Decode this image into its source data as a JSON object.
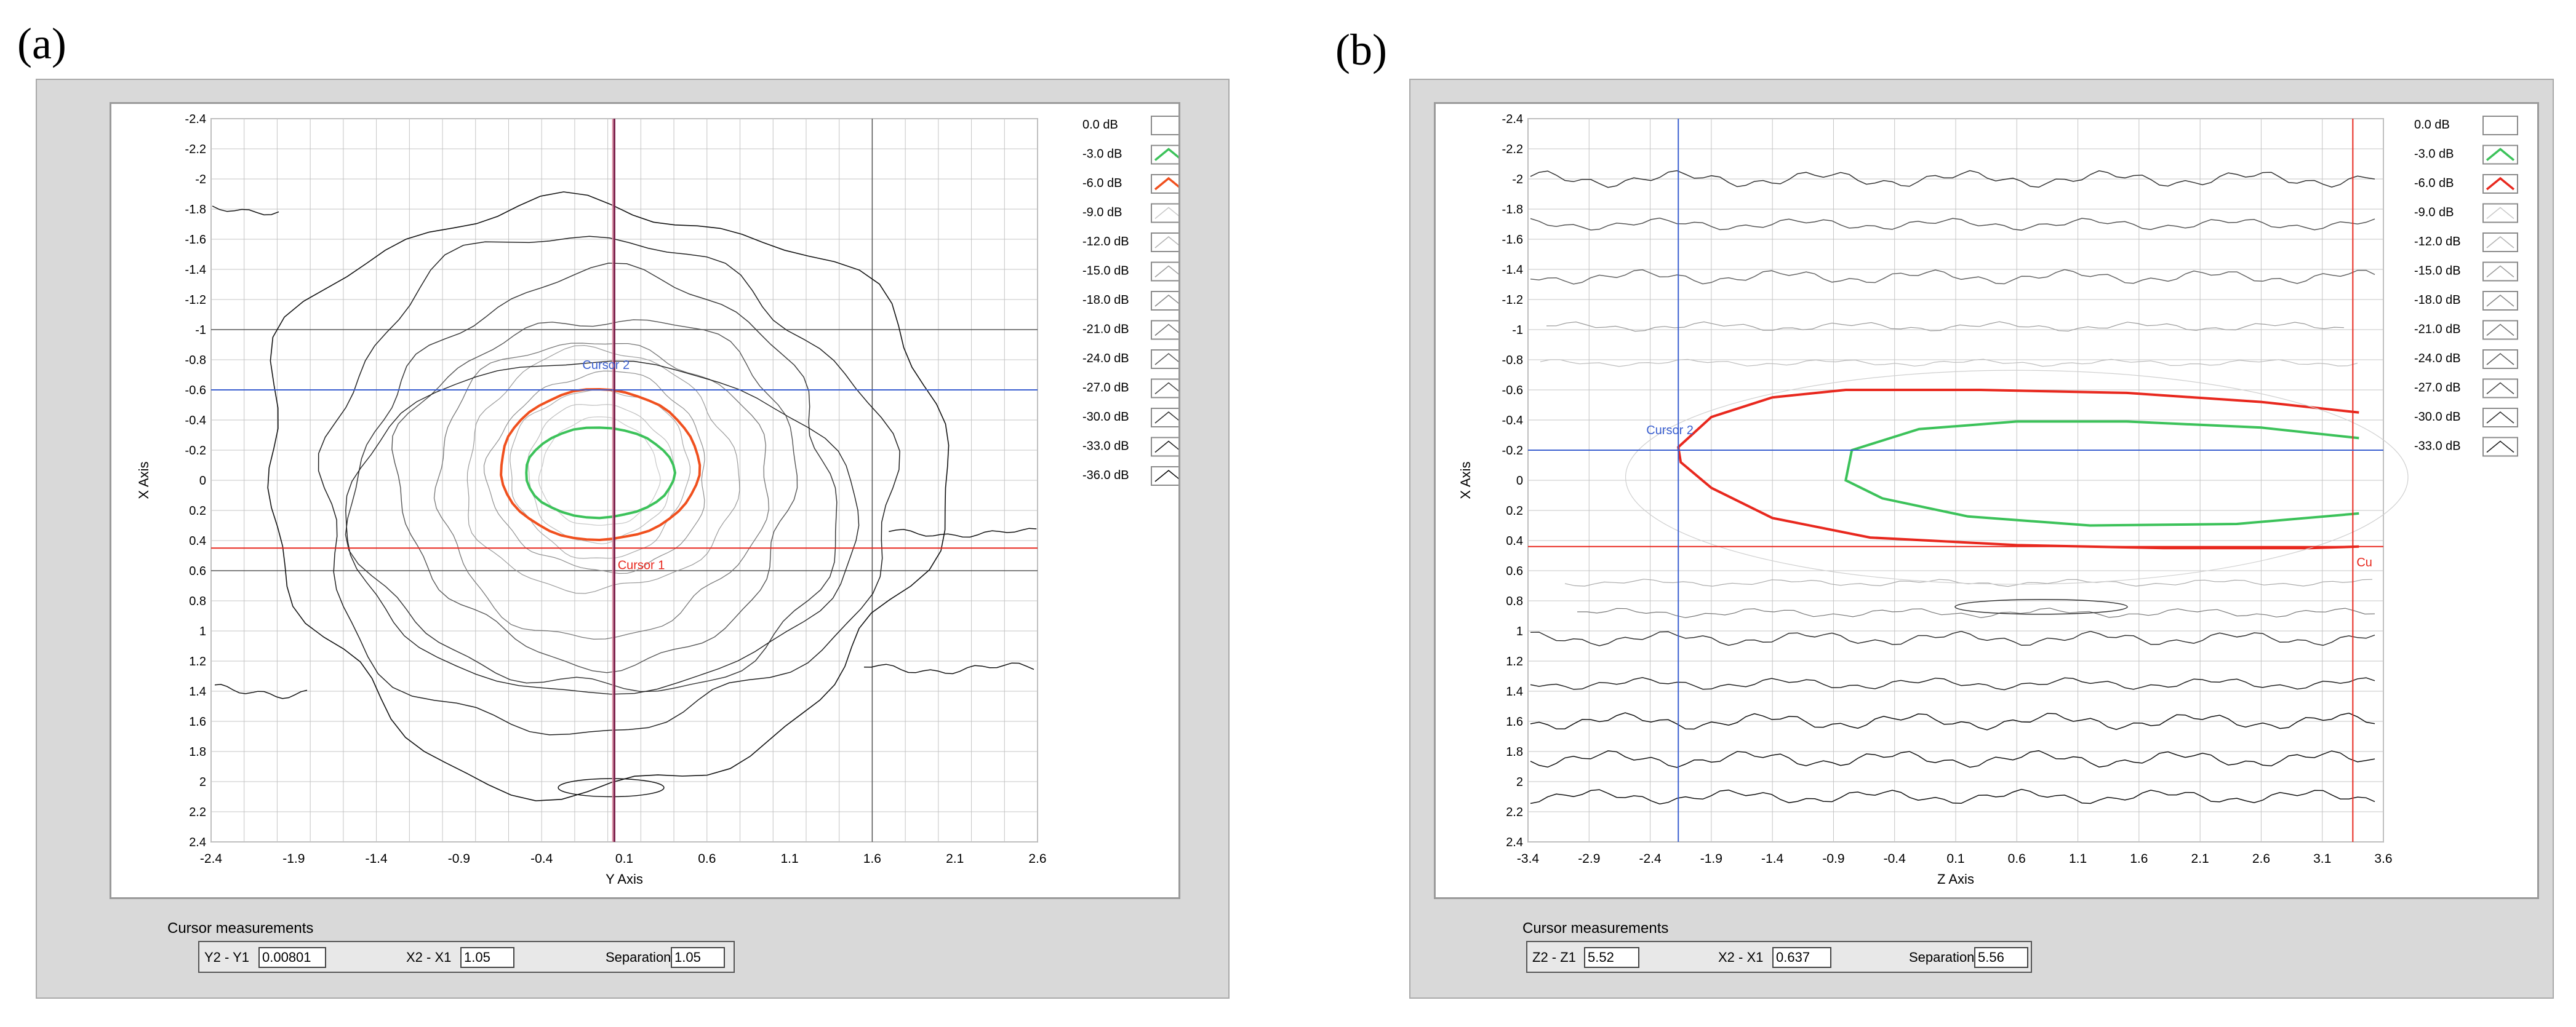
{
  "panels": [
    {
      "label": "(a)",
      "xlabel": "Y Axis",
      "ylabel": "X Axis",
      "xticks": [
        "-2.4",
        "-1.9",
        "-1.4",
        "-0.9",
        "-0.4",
        "0.1",
        "0.6",
        "1.1",
        "1.6",
        "2.1",
        "2.6"
      ],
      "yticks": [
        "-2.4",
        "-2.2",
        "-2",
        "-1.8",
        "-1.6",
        "-1.4",
        "-1.2",
        "-1",
        "-0.8",
        "-0.6",
        "-0.4",
        "-0.2",
        "0",
        "0.2",
        "0.4",
        "0.6",
        "0.8",
        "1",
        "1.2",
        "1.4",
        "1.6",
        "1.8",
        "2",
        "2.2",
        "2.4"
      ],
      "cursor1_label": "Cursor 1",
      "cursor2_label": "Cursor 2",
      "measurements": {
        "title": "Cursor measurements",
        "a_label": "Y2 - Y1",
        "a_value": "0.00801",
        "b_label": "X2 - X1",
        "b_value": "1.05",
        "c_label": "Separation",
        "c_value": "1.05"
      }
    },
    {
      "label": "(b)",
      "xlabel": "Z Axis",
      "ylabel": "X Axis",
      "xticks": [
        "-3.4",
        "-2.9",
        "-2.4",
        "-1.9",
        "-1.4",
        "-0.9",
        "-0.4",
        "0.1",
        "0.6",
        "1.1",
        "1.6",
        "2.1",
        "2.6",
        "3.1",
        "3.6"
      ],
      "yticks": [
        "-2.4",
        "-2.2",
        "-2",
        "-1.8",
        "-1.6",
        "-1.4",
        "-1.2",
        "-1",
        "-0.8",
        "-0.6",
        "-0.4",
        "-0.2",
        "0",
        "0.2",
        "0.4",
        "0.6",
        "0.8",
        "1",
        "1.2",
        "1.4",
        "1.6",
        "1.8",
        "2",
        "2.2",
        "2.4"
      ],
      "cursor1_label": "Cu",
      "cursor2_label": "Cursor 2",
      "measurements": {
        "title": "Cursor measurements",
        "a_label": "Z2 - Z1",
        "a_value": "5.52",
        "b_label": "X2 - X1",
        "b_value": "0.637",
        "c_label": "Separation",
        "c_value": "5.56"
      }
    }
  ],
  "colors": {
    "green": "#3cc25a",
    "red_a": "#f0501e",
    "red_b": "#e8281e",
    "cursor_blue": "#3a5fd0",
    "cursor_red": "#e8281e",
    "cursor_purple": "#7a1f4a"
  },
  "chart_data": [
    {
      "type": "contour",
      "xlabel": "Y Axis",
      "ylabel": "X Axis",
      "xlim": [
        -2.4,
        2.6
      ],
      "ylim": [
        -2.4,
        2.4
      ],
      "y_inverted": true,
      "legend": [
        "0.0 dB",
        "-3.0 dB",
        "-6.0 dB",
        "-9.0 dB",
        "-12.0 dB",
        "-15.0 dB",
        "-18.0 dB",
        "-21.0 dB",
        "-24.0 dB",
        "-27.0 dB",
        "-30.0 dB",
        "-33.0 dB",
        "-36.0 dB"
      ],
      "contours": [
        {
          "level": "-3.0 dB",
          "center_y": -0.05,
          "center_x": -0.05,
          "radius_y": 0.45,
          "radius_x": 0.3
        },
        {
          "level": "-6.0 dB",
          "center_y": -0.05,
          "center_x": -0.1,
          "radius_y": 0.6,
          "radius_x": 0.5
        }
      ],
      "cursors": [
        {
          "name": "Cursor 1",
          "y": 0.03,
          "x": 0.45
        },
        {
          "name": "Cursor 2",
          "y": 0.04,
          "x": -0.6
        }
      ]
    },
    {
      "type": "contour",
      "xlabel": "Z Axis",
      "ylabel": "X Axis",
      "xlim": [
        -3.4,
        3.6
      ],
      "ylim": [
        -2.4,
        2.4
      ],
      "y_inverted": true,
      "legend": [
        "0.0 dB",
        "-3.0 dB",
        "-6.0 dB",
        "-9.0 dB",
        "-12.0 dB",
        "-15.0 dB",
        "-18.0 dB",
        "-21.0 dB",
        "-24.0 dB",
        "-27.0 dB",
        "-30.0 dB",
        "-33.0 dB"
      ],
      "cursors": [
        {
          "name": "Cursor 1",
          "z": 3.35,
          "x": 0.44
        },
        {
          "name": "Cursor 2",
          "z": -2.17,
          "x": -0.2
        }
      ]
    }
  ]
}
